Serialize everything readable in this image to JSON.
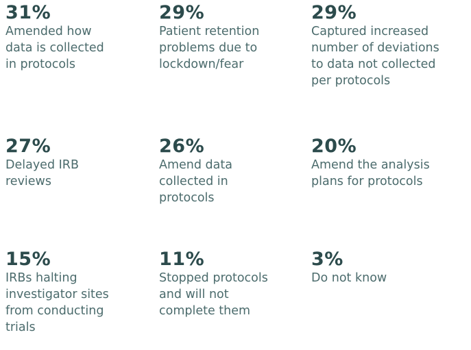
{
  "items": [
    {
      "percent": "31%",
      "lines": [
        "Amended how",
        "data is collected",
        "in protocols"
      ]
    },
    {
      "percent": "29%",
      "lines": [
        "Patient retention",
        "problems due to",
        "lockdown/fear"
      ]
    },
    {
      "percent": "29%",
      "lines": [
        "Captured increased",
        "number of deviations",
        "to data not collected",
        "per protocols"
      ]
    },
    {
      "percent": "27%",
      "lines": [
        "Delayed IRB",
        "reviews"
      ]
    },
    {
      "percent": "26%",
      "lines": [
        "Amend data",
        "collected in",
        "protocols"
      ]
    },
    {
      "percent": "20%",
      "lines": [
        "Amend the analysis",
        "plans for protocols"
      ]
    },
    {
      "percent": "15%",
      "lines": [
        "IRBs halting",
        "investigator sites",
        "from conducting",
        "trials"
      ]
    },
    {
      "percent": "11%",
      "lines": [
        "Stopped protocols",
        "and will not",
        "complete them"
      ]
    },
    {
      "percent": "3%",
      "lines": [
        "Do not know"
      ]
    }
  ]
}
